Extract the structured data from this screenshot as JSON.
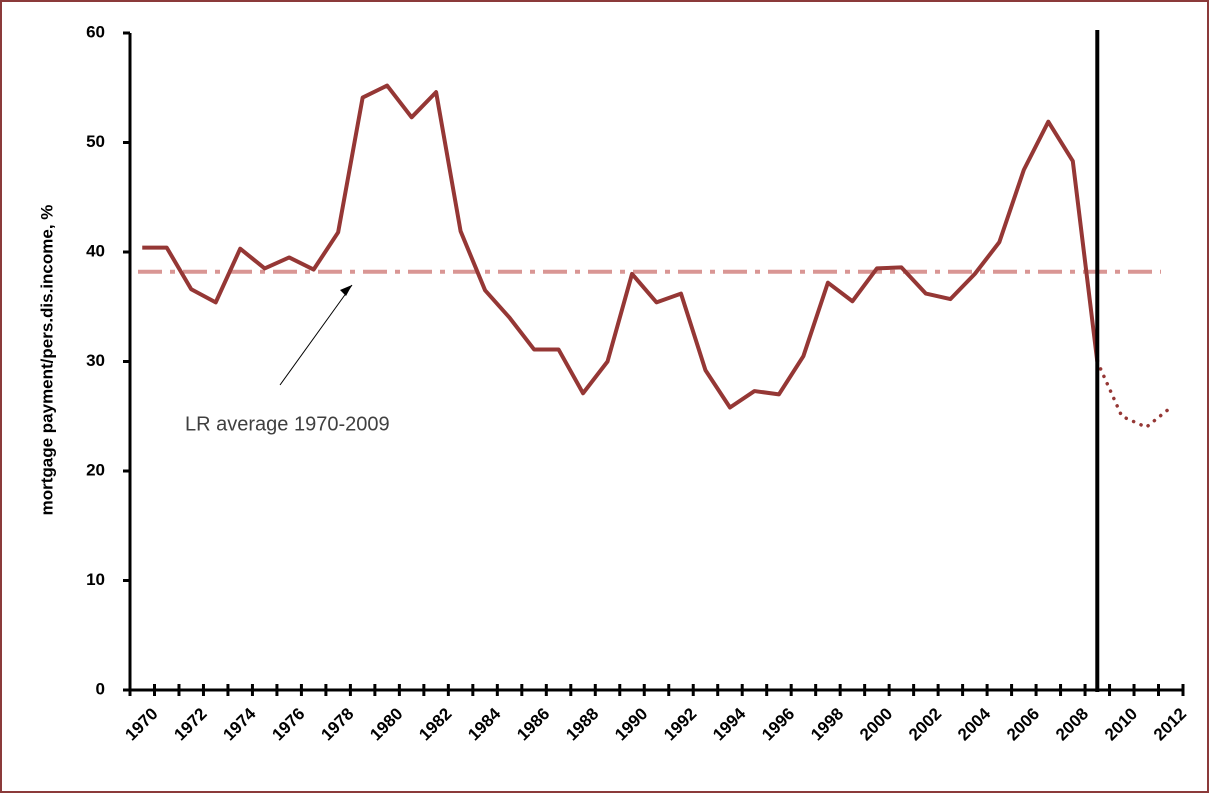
{
  "chart_data": {
    "type": "line",
    "y_label": "mortgage payment/pers.dis.income, %",
    "x": [
      1970,
      1971,
      1972,
      1973,
      1974,
      1975,
      1976,
      1977,
      1978,
      1979,
      1980,
      1981,
      1982,
      1983,
      1984,
      1985,
      1986,
      1987,
      1988,
      1989,
      1990,
      1991,
      1992,
      1993,
      1994,
      1995,
      1996,
      1997,
      1998,
      1999,
      2000,
      2001,
      2002,
      2003,
      2004,
      2005,
      2006,
      2007,
      2008,
      2009,
      2010,
      2011,
      2012
    ],
    "series": [
      {
        "color": "#953735",
        "style": "solid",
        "values": [
          40.4,
          40.4,
          36.6,
          35.4,
          40.3,
          38.5,
          39.5,
          38.4,
          41.8,
          54.1,
          55.2,
          52.3,
          54.6,
          41.9,
          36.5,
          34.0,
          31.1,
          31.1,
          27.1,
          30.0,
          38.0,
          35.4,
          36.2,
          29.2,
          25.8,
          27.3,
          27.0,
          30.5,
          37.2,
          35.5,
          38.5,
          38.6,
          36.2,
          35.7,
          38.0,
          40.9,
          47.5,
          51.9,
          48.3,
          30.0,
          null,
          null,
          null
        ]
      },
      {
        "color": "#953735",
        "style": "dotted",
        "values": [
          null,
          null,
          null,
          null,
          null,
          null,
          null,
          null,
          null,
          null,
          null,
          null,
          null,
          null,
          null,
          null,
          null,
          null,
          null,
          null,
          null,
          null,
          null,
          null,
          null,
          null,
          null,
          null,
          null,
          null,
          null,
          null,
          null,
          null,
          null,
          null,
          null,
          null,
          null,
          30.0,
          25.0,
          24.0,
          25.8
        ]
      }
    ],
    "reference_line": {
      "value": 38.2,
      "color": "#d99694",
      "label": "LR average 1970-2009"
    },
    "vlines": [
      2009
    ],
    "xlim": [
      1969.5,
      2012.5
    ],
    "xticks": [
      1970,
      1972,
      1974,
      1976,
      1978,
      1980,
      1982,
      1984,
      1986,
      1988,
      1990,
      1992,
      1994,
      1996,
      1998,
      2000,
      2002,
      2004,
      2006,
      2008,
      2010,
      2012
    ],
    "ylim": [
      0,
      60
    ],
    "yticks": [
      0,
      10,
      20,
      30,
      40,
      50,
      60
    ]
  }
}
